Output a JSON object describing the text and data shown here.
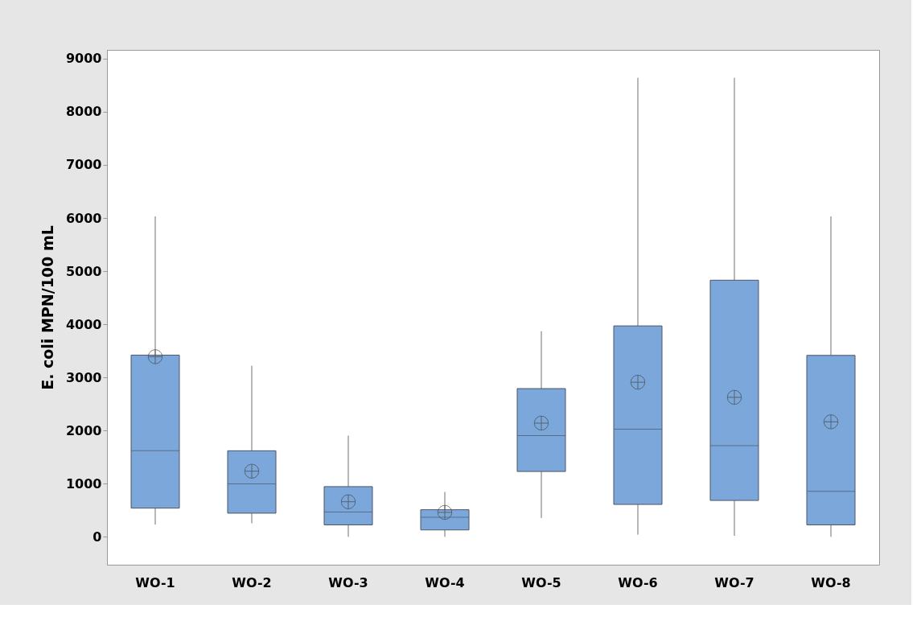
{
  "chart_data": {
    "type": "box",
    "ylabel": "E. coli MPN/100 mL",
    "categories": [
      "WO-1",
      "WO-2",
      "WO-3",
      "WO-4",
      "WO-5",
      "WO-6",
      "WO-7",
      "WO-8"
    ],
    "color": "#7ba7da",
    "boxes": [
      {
        "low": 230,
        "q1": 540,
        "median": 1620,
        "q3": 3420,
        "high": 6030,
        "mean": 3390
      },
      {
        "low": 255,
        "q1": 445,
        "median": 995,
        "q3": 1620,
        "high": 3220,
        "mean": 1235
      },
      {
        "low": 0,
        "q1": 225,
        "median": 465,
        "q3": 945,
        "high": 1905,
        "mean": 660
      },
      {
        "low": 0,
        "q1": 130,
        "median": 370,
        "q3": 510,
        "high": 845,
        "mean": 460
      },
      {
        "low": 355,
        "q1": 1230,
        "median": 1905,
        "q3": 2790,
        "high": 3870,
        "mean": 2140
      },
      {
        "low": 40,
        "q1": 610,
        "median": 2025,
        "q3": 3970,
        "high": 8640,
        "mean": 2910
      },
      {
        "low": 20,
        "q1": 685,
        "median": 1715,
        "q3": 4830,
        "high": 8640,
        "mean": 2625
      },
      {
        "low": 0,
        "q1": 225,
        "median": 855,
        "q3": 3415,
        "high": 6030,
        "mean": 2165
      }
    ],
    "ylim": [
      -525,
      9165
    ],
    "yticks": [
      0,
      1000,
      2000,
      3000,
      4000,
      5000,
      6000,
      7000,
      8000,
      9000
    ],
    "grid": false
  }
}
